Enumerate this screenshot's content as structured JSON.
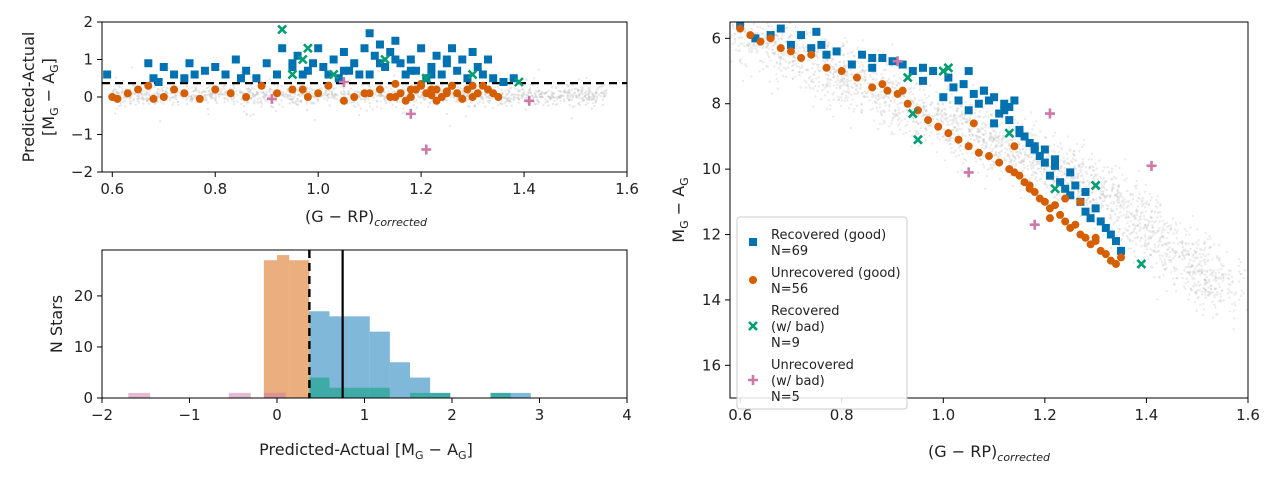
{
  "colors": {
    "recovered_good": "#0072b2",
    "unrecovered_good": "#d55e00",
    "recovered_bad": "#009e73",
    "unrecovered_bad": "#cc79a7",
    "background": "#bdbdbd"
  },
  "chart_data": [
    {
      "id": "residual",
      "type": "scatter",
      "xlabel": "(G − RP)",
      "xlabel_sub": "corrected",
      "ylabel_line1": "Predicted-Actual",
      "ylabel_line2": "[M",
      "ylabel_line2_sub": "G",
      "ylabel_line2_mid": " − A",
      "ylabel_line2_sub2": "G",
      "ylabel_line2_end": "]",
      "xlim": [
        0.58,
        1.6
      ],
      "ylim": [
        -2,
        2
      ],
      "xticks": [
        0.6,
        0.8,
        1.0,
        1.2,
        1.4,
        1.6
      ],
      "xtick_labels": [
        "0.6",
        "0.8",
        "1.0",
        "1.2",
        "1.4",
        "1.6"
      ],
      "yticks": [
        -2,
        -1,
        0,
        1,
        2
      ],
      "ytick_labels": [
        "−2",
        "−1",
        "0",
        "1",
        "2"
      ],
      "threshold": 0.37,
      "series": [
        {
          "name": "Recovered (good)",
          "marker": "square",
          "x": [
            0.59,
            0.67,
            0.68,
            0.69,
            0.7,
            0.72,
            0.74,
            0.75,
            0.78,
            0.8,
            0.82,
            0.84,
            0.86,
            0.88,
            0.9,
            0.92,
            0.93,
            0.95,
            0.96,
            0.97,
            0.98,
            0.99,
            1.0,
            1.01,
            1.02,
            1.03,
            1.04,
            1.05,
            1.06,
            1.07,
            1.08,
            1.09,
            1.1,
            1.11,
            1.12,
            1.13,
            1.14,
            1.15,
            1.16,
            1.17,
            1.18,
            1.19,
            1.2,
            1.21,
            1.22,
            1.23,
            1.24,
            1.25,
            1.26,
            1.27,
            1.28,
            1.29,
            1.3,
            1.31,
            1.32,
            1.33,
            1.34,
            1.36,
            1.38,
            1.1,
            1.12,
            1.15,
            1.18,
            1.22,
            1.25,
            1.05,
            0.95,
            0.85,
            0.76
          ],
          "y": [
            0.6,
            0.9,
            0.5,
            0.4,
            0.8,
            0.6,
            0.5,
            0.9,
            0.7,
            0.8,
            0.6,
            1.0,
            0.7,
            0.5,
            0.9,
            0.6,
            1.3,
            0.8,
            1.1,
            0.6,
            0.7,
            0.9,
            1.3,
            0.8,
            0.6,
            1.0,
            0.5,
            1.2,
            0.7,
            0.9,
            0.6,
            1.3,
            1.7,
            1.1,
            1.4,
            0.8,
            1.2,
            1.5,
            0.9,
            0.6,
            1.0,
            0.7,
            1.3,
            0.5,
            0.8,
            1.1,
            0.6,
            0.9,
            1.3,
            0.7,
            1.0,
            0.5,
            1.2,
            0.8,
            0.6,
            1.0,
            0.5,
            0.4,
            0.5,
            0.6,
            0.9,
            1.0,
            0.7,
            0.6,
            1.0,
            0.7,
            0.9,
            0.5,
            0.6
          ]
        },
        {
          "name": "Unrecovered (good)",
          "marker": "circle",
          "x": [
            0.6,
            0.61,
            0.63,
            0.65,
            0.67,
            0.68,
            0.7,
            0.72,
            0.74,
            0.77,
            0.8,
            0.83,
            0.86,
            0.89,
            0.92,
            0.95,
            0.98,
            1.0,
            1.02,
            1.05,
            1.07,
            1.1,
            1.12,
            1.14,
            1.15,
            1.16,
            1.17,
            1.18,
            1.19,
            1.2,
            1.21,
            1.22,
            1.23,
            1.24,
            1.25,
            1.26,
            1.27,
            1.28,
            1.29,
            1.3,
            1.31,
            1.32,
            1.33,
            1.34,
            1.35,
            1.2,
            1.22,
            1.25,
            1.18,
            1.27,
            1.3,
            1.15,
            1.23,
            1.26,
            1.09,
            0.97
          ],
          "y": [
            0.0,
            -0.05,
            0.1,
            0.2,
            0.3,
            -0.05,
            0.0,
            0.2,
            0.1,
            -0.05,
            0.2,
            0.1,
            0.0,
            0.3,
            0.1,
            0.2,
            0.0,
            0.1,
            0.3,
            -0.1,
            0.0,
            0.1,
            0.2,
            0.0,
            0.35,
            0.1,
            -0.1,
            0.0,
            0.2,
            0.3,
            0.1,
            0.2,
            -0.1,
            0.0,
            0.15,
            0.3,
            0.1,
            -0.05,
            0.2,
            0.0,
            0.1,
            0.3,
            0.2,
            0.1,
            0.0,
            0.35,
            0.05,
            0.1,
            0.2,
            0.1,
            0.3,
            0.0,
            0.2,
            0.3,
            0.1,
            0.2
          ]
        },
        {
          "name": "Recovered (w/ bad)",
          "marker": "x",
          "x": [
            0.93,
            0.95,
            0.97,
            0.98,
            1.03,
            1.13,
            1.21,
            1.3,
            1.39
          ],
          "y": [
            1.8,
            0.6,
            1.0,
            1.3,
            0.6,
            1.0,
            0.5,
            0.6,
            0.4
          ]
        },
        {
          "name": "Unrecovered (w/ bad)",
          "marker": "plus",
          "x": [
            0.91,
            1.18,
            1.21,
            1.41,
            1.05
          ],
          "y": [
            -0.05,
            -0.45,
            -1.4,
            -0.1,
            0.4
          ]
        }
      ]
    },
    {
      "id": "histogram",
      "type": "bar",
      "xlabel": "Predicted-Actual [M",
      "xlabel_sub": "G",
      "xlabel_mid": " − A",
      "xlabel_sub2": "G",
      "xlabel_end": "]",
      "ylabel": "N Stars",
      "xlim": [
        -2,
        4
      ],
      "ylim": [
        0,
        29
      ],
      "xticks": [
        -2,
        -1,
        0,
        1,
        2,
        3,
        4
      ],
      "xtick_labels": [
        "−2",
        "−1",
        "0",
        "1",
        "2",
        "3",
        "4"
      ],
      "yticks": [
        0,
        10,
        20
      ],
      "ytick_labels": [
        "0",
        "10",
        "20"
      ],
      "vlines": {
        "dashed": 0.37,
        "solid": 0.75
      },
      "series": [
        {
          "name": "Unrecovered (good)",
          "bins": [
            [
              -0.15,
              0.0,
              27
            ],
            [
              0.0,
              0.14,
              28
            ],
            [
              0.14,
              0.37,
              27
            ]
          ]
        },
        {
          "name": "Recovered (good)",
          "bins": [
            [
              0.37,
              0.6,
              17
            ],
            [
              0.6,
              0.83,
              16
            ],
            [
              0.83,
              1.06,
              16
            ],
            [
              1.06,
              1.29,
              13
            ],
            [
              1.29,
              1.52,
              7
            ],
            [
              1.52,
              1.75,
              4
            ],
            [
              1.75,
              1.98,
              1
            ],
            [
              2.44,
              2.67,
              1
            ],
            [
              2.67,
              2.9,
              1
            ]
          ]
        },
        {
          "name": "Recovered (w/ bad)",
          "bins": [
            [
              0.37,
              0.6,
              4
            ],
            [
              0.6,
              0.83,
              2
            ],
            [
              0.83,
              1.06,
              2
            ],
            [
              1.06,
              1.29,
              2
            ],
            [
              1.52,
              1.75,
              1
            ],
            [
              1.75,
              1.98,
              1
            ],
            [
              2.44,
              2.67,
              1
            ]
          ]
        },
        {
          "name": "Unrecovered (w/ bad)",
          "bins": [
            [
              -1.7,
              -1.45,
              1
            ],
            [
              -0.55,
              -0.3,
              1
            ],
            [
              -0.15,
              0.1,
              1
            ]
          ]
        }
      ]
    },
    {
      "id": "cmd",
      "type": "scatter",
      "xlabel": "(G − RP)",
      "xlabel_sub": "corrected",
      "ylabel": "M",
      "ylabel_sub": "G",
      "ylabel_mid": " − A",
      "ylabel_sub2": "G",
      "xlim": [
        0.58,
        1.6
      ],
      "ylim": [
        5.5,
        17
      ],
      "y_inverted": true,
      "xticks": [
        0.6,
        0.8,
        1.0,
        1.2,
        1.4,
        1.6
      ],
      "xtick_labels": [
        "0.6",
        "0.8",
        "1.0",
        "1.2",
        "1.4",
        "1.6"
      ],
      "yticks": [
        6,
        8,
        10,
        12,
        14,
        16
      ],
      "ytick_labels": [
        "6",
        "8",
        "10",
        "12",
        "14",
        "16"
      ],
      "series": [
        {
          "name": "Recovered (good)",
          "marker": "square",
          "x": [
            0.6,
            0.63,
            0.66,
            0.68,
            0.7,
            0.72,
            0.74,
            0.75,
            0.77,
            0.79,
            0.82,
            0.84,
            0.86,
            0.88,
            0.9,
            0.92,
            0.94,
            0.96,
            0.98,
            1.0,
            1.01,
            1.02,
            1.03,
            1.04,
            1.05,
            1.06,
            1.07,
            1.08,
            1.09,
            1.1,
            1.11,
            1.12,
            1.13,
            1.14,
            1.15,
            1.16,
            1.17,
            1.18,
            1.19,
            1.2,
            1.21,
            1.22,
            1.23,
            1.24,
            1.25,
            1.26,
            1.27,
            1.28,
            1.29,
            1.3,
            1.31,
            1.32,
            1.33,
            1.34,
            1.35,
            1.1,
            1.12,
            1.15,
            1.18,
            1.22,
            1.25,
            1.05,
            0.96,
            0.86,
            0.76,
            1.13,
            1.2,
            1.28,
            1.08
          ],
          "y": [
            5.6,
            6.0,
            5.9,
            5.7,
            6.2,
            5.9,
            6.3,
            5.8,
            6.5,
            6.4,
            6.8,
            6.5,
            6.9,
            6.6,
            6.7,
            6.8,
            7.0,
            7.3,
            7.0,
            7.8,
            7.2,
            7.5,
            7.9,
            7.4,
            8.2,
            7.7,
            8.0,
            7.6,
            7.9,
            7.8,
            8.3,
            8.0,
            8.5,
            7.9,
            8.8,
            9.0,
            9.2,
            9.3,
            9.6,
            9.8,
            10.2,
            9.9,
            10.4,
            10.6,
            10.8,
            10.5,
            11.0,
            11.3,
            11.5,
            11.2,
            11.6,
            11.8,
            12.0,
            12.2,
            12.5,
            8.6,
            8.2,
            8.9,
            9.4,
            9.7,
            10.1,
            7.0,
            6.9,
            6.6,
            6.2,
            8.1,
            9.4,
            10.7,
            7.6
          ]
        },
        {
          "name": "Unrecovered (good)",
          "marker": "circle",
          "x": [
            0.6,
            0.62,
            0.64,
            0.66,
            0.68,
            0.7,
            0.72,
            0.74,
            0.77,
            0.8,
            0.83,
            0.86,
            0.89,
            0.91,
            0.93,
            0.95,
            0.97,
            0.99,
            1.01,
            1.03,
            1.05,
            1.07,
            1.09,
            1.11,
            1.13,
            1.14,
            1.15,
            1.16,
            1.17,
            1.18,
            1.19,
            1.2,
            1.21,
            1.22,
            1.23,
            1.24,
            1.25,
            1.26,
            1.27,
            1.28,
            1.29,
            1.3,
            1.31,
            1.32,
            1.33,
            1.34,
            1.35,
            0.88,
            0.92,
            1.06,
            1.14,
            1.21,
            1.24,
            1.27,
            1.3,
            1.17
          ],
          "y": [
            5.7,
            5.9,
            6.1,
            6.0,
            6.3,
            6.4,
            6.6,
            6.5,
            6.9,
            7.0,
            7.2,
            7.5,
            7.6,
            7.7,
            8.0,
            8.2,
            8.5,
            8.7,
            8.9,
            9.1,
            9.3,
            9.5,
            9.6,
            9.8,
            10.0,
            10.1,
            10.2,
            10.4,
            10.6,
            10.7,
            10.9,
            11.0,
            11.2,
            11.1,
            11.4,
            11.6,
            11.8,
            11.7,
            12.0,
            12.1,
            12.3,
            12.2,
            12.5,
            12.6,
            12.8,
            12.9,
            12.7,
            7.4,
            7.6,
            8.6,
            9.3,
            11.5,
            10.9,
            11.0,
            12.1,
            10.5
          ]
        },
        {
          "name": "Recovered (w/ bad)",
          "marker": "x",
          "x": [
            0.93,
            0.94,
            0.95,
            1.0,
            1.01,
            1.13,
            1.22,
            1.3,
            1.39
          ],
          "y": [
            7.2,
            8.3,
            9.1,
            7.0,
            6.9,
            8.9,
            10.6,
            10.5,
            12.9
          ]
        },
        {
          "name": "Unrecovered (w/ bad)",
          "marker": "plus",
          "x": [
            0.91,
            1.05,
            1.18,
            1.21,
            1.41
          ],
          "y": [
            6.7,
            10.1,
            11.7,
            8.3,
            9.9
          ]
        }
      ],
      "legend": {
        "placement": "lower-left",
        "entries": [
          {
            "label_lines": [
              "Recovered (good)",
              "N=69"
            ],
            "marker": "square",
            "color_key": "recovered_good"
          },
          {
            "label_lines": [
              "Unrecovered (good)",
              "N=56"
            ],
            "marker": "circle",
            "color_key": "unrecovered_good"
          },
          {
            "label_lines": [
              "Recovered",
              "(w/ bad)",
              "N=9"
            ],
            "marker": "x",
            "color_key": "recovered_bad"
          },
          {
            "label_lines": [
              "Unrecovered",
              "(w/ bad)",
              "N=5"
            ],
            "marker": "plus",
            "color_key": "unrecovered_bad"
          }
        ]
      }
    }
  ]
}
